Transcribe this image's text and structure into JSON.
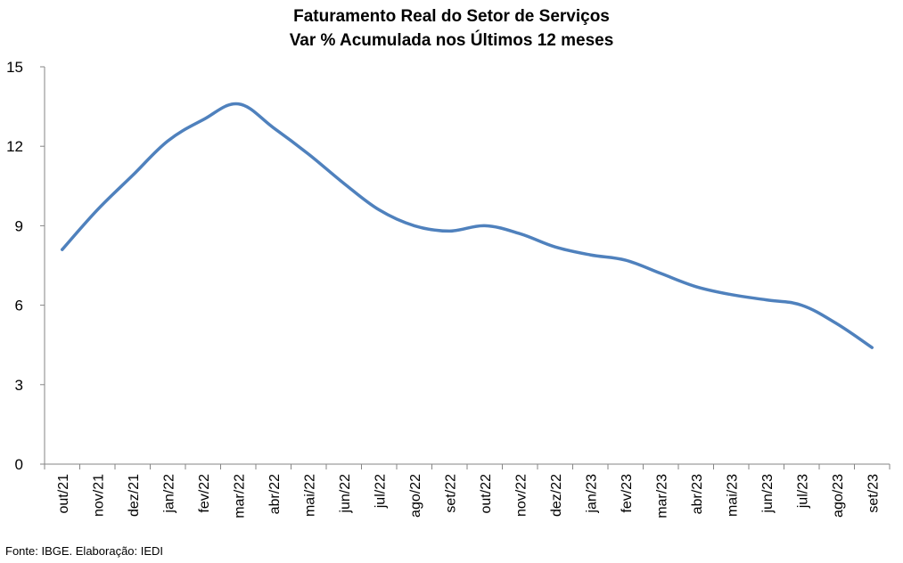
{
  "chart_data": {
    "type": "line",
    "title": "Faturamento Real do Setor de Serviços",
    "subtitle": "Var % Acumulada nos Últimos 12 meses",
    "xlabel": "",
    "ylabel": "",
    "categories": [
      "out/21",
      "nov/21",
      "dez/21",
      "jan/22",
      "fev/22",
      "mar/22",
      "abr/22",
      "mai/22",
      "jun/22",
      "jul/22",
      "ago/22",
      "set/22",
      "out/22",
      "nov/22",
      "dez/22",
      "jan/23",
      "fev/23",
      "mar/23",
      "abr/23",
      "mai/23",
      "jun/23",
      "jul/23",
      "ago/23",
      "set/23"
    ],
    "series": [
      {
        "values": [
          8.1,
          9.6,
          10.9,
          12.2,
          13.0,
          13.6,
          12.7,
          11.7,
          10.6,
          9.6,
          9.0,
          8.8,
          9.0,
          8.7,
          8.2,
          7.9,
          7.7,
          7.2,
          6.7,
          6.4,
          6.2,
          6.0,
          5.3,
          4.4
        ],
        "color": "#4F81BD"
      }
    ],
    "ylim": [
      0,
      15
    ],
    "yticks": [
      "0",
      "3",
      "6",
      "9",
      "12",
      "15"
    ],
    "grid": false,
    "legend": "none"
  },
  "source_note": "Fonte: IBGE. Elaboração: IEDI"
}
